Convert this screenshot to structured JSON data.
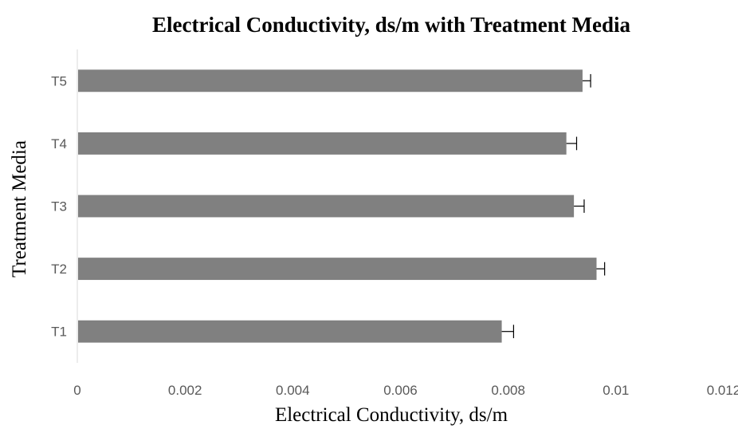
{
  "chart_data": {
    "type": "bar",
    "orientation": "horizontal",
    "title": "Electrical Conductivity, ds/m with Treatment Media",
    "xlabel": "Electrical Conductivity, ds/m",
    "ylabel": "Treatment Media",
    "categories": [
      "T1",
      "T2",
      "T3",
      "T4",
      "T5"
    ],
    "values": [
      0.00788,
      0.00964,
      0.00922,
      0.00908,
      0.00938
    ],
    "errors": [
      0.00022,
      0.00015,
      0.00019,
      0.00019,
      0.00015
    ],
    "xlim": [
      0,
      0.012
    ],
    "xticks": [
      0,
      0.002,
      0.004,
      0.006,
      0.008,
      0.01,
      0.012
    ],
    "xtick_labels": [
      "0",
      "0.002",
      "0.004",
      "0.006",
      "0.008",
      "0.01",
      "0.012"
    ],
    "grid": false,
    "legend": "none",
    "bar_color": "#808080",
    "error_bar_color": "#000000"
  }
}
